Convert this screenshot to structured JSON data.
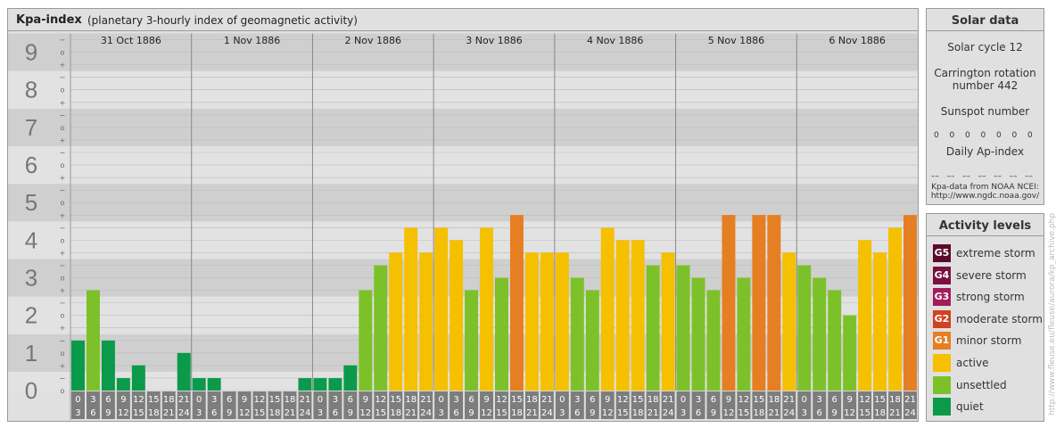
{
  "header": {
    "title": "Kpa-index",
    "subtitle": "(planetary 3-hourly index of geomagnetic activity)"
  },
  "chart_data": {
    "type": "bar",
    "y_major_labels": [
      "0",
      "1",
      "2",
      "3",
      "4",
      "5",
      "6",
      "7",
      "8",
      "9"
    ],
    "y_minor_labels": [
      "+",
      "o",
      "−"
    ],
    "ylim": [
      0,
      9.33
    ],
    "days": [
      "31 Oct 1886",
      "1 Nov 1886",
      "2 Nov 1886",
      "3 Nov 1886",
      "4 Nov 1886",
      "5 Nov 1886",
      "6 Nov 1886"
    ],
    "interval_labels": [
      [
        "0",
        "3"
      ],
      [
        "3",
        "6"
      ],
      [
        "6",
        "9"
      ],
      [
        "9",
        "12"
      ],
      [
        "12",
        "15"
      ],
      [
        "15",
        "18"
      ],
      [
        "18",
        "21"
      ],
      [
        "21",
        "24"
      ]
    ],
    "values": [
      1.33,
      2.67,
      1.33,
      0.33,
      0.67,
      0,
      0,
      1,
      0.33,
      0.33,
      0,
      0,
      0,
      0,
      0,
      0.33,
      0.33,
      0.33,
      0.67,
      2.67,
      3.33,
      3.67,
      4.33,
      3.67,
      4.33,
      4,
      2.67,
      4.33,
      3,
      4.67,
      3.67,
      3.67,
      3.67,
      3,
      2.67,
      4.33,
      4,
      4,
      3.33,
      3.67,
      3.33,
      3,
      2.67,
      4.67,
      3,
      4.67,
      4.67,
      3.67,
      3.33,
      3,
      2.67,
      2,
      4,
      3.67,
      4.33,
      4.67
    ]
  },
  "solar": {
    "title": "Solar data",
    "cycle": "Solar cycle 12",
    "carrington_1": "Carrington rotation",
    "carrington_2": "number 442",
    "sunspot_title": "Sunspot number",
    "sunspot_values": [
      "0",
      "0",
      "0",
      "0",
      "0",
      "0",
      "0"
    ],
    "ap_title": "Daily Ap-index",
    "ap_values": [
      "––",
      "––",
      "––",
      "––",
      "––",
      "––",
      "––"
    ],
    "source_1": "Kpa-data from NOAA NCEI:",
    "source_2": "http://www.ngdc.noaa.gov/"
  },
  "activity": {
    "title": "Activity levels",
    "levels": [
      {
        "code": "G5",
        "label": "extreme storm",
        "color": "#5a0a2a"
      },
      {
        "code": "G4",
        "label": "severe storm",
        "color": "#7a1040"
      },
      {
        "code": "G3",
        "label": "strong storm",
        "color": "#a01c5a"
      },
      {
        "code": "G2",
        "label": "moderate storm",
        "color": "#d2421e"
      },
      {
        "code": "G1",
        "label": "minor storm",
        "color": "#e67e22"
      },
      {
        "code": "",
        "label": "active",
        "color": "#f5c000"
      },
      {
        "code": "",
        "label": "unsettled",
        "color": "#7cc12a"
      },
      {
        "code": "",
        "label": "quiet",
        "color": "#0a9a4a"
      }
    ]
  },
  "credit": "http://www.fleuse.eu/fleuse/aurora/kp_archive.php"
}
